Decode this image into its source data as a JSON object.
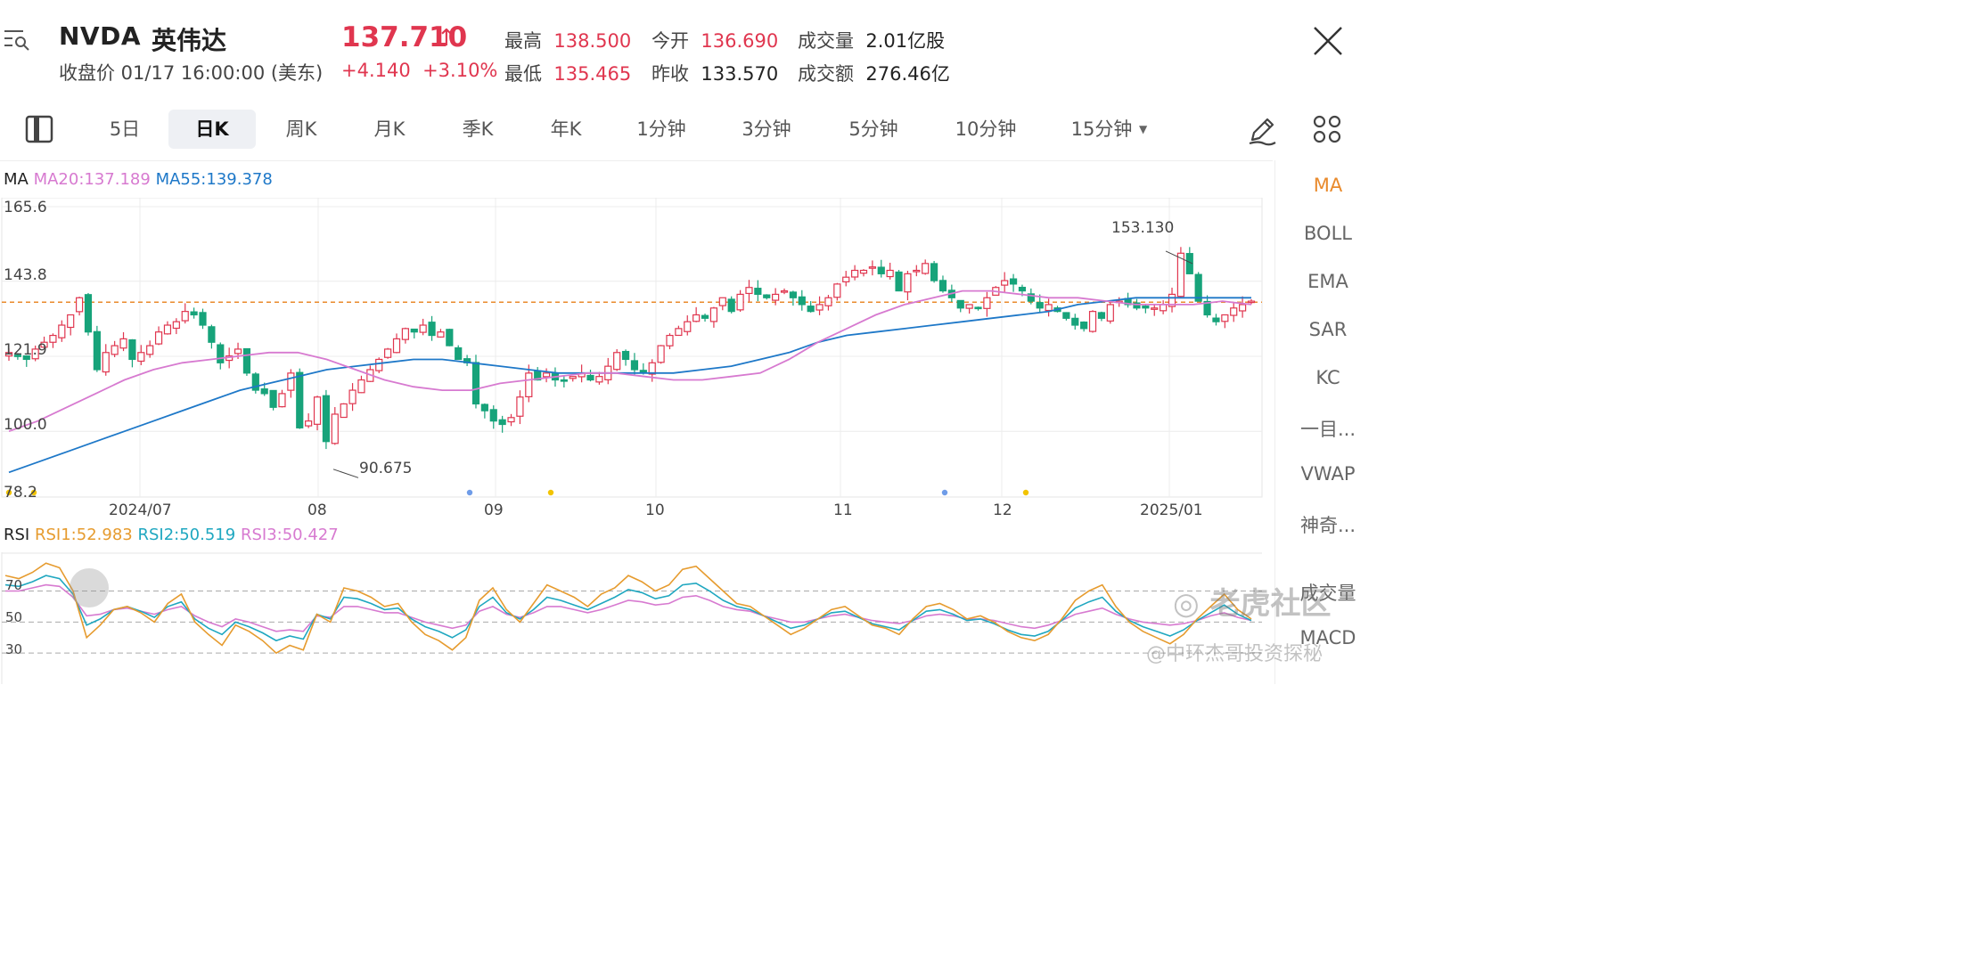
{
  "header": {
    "ticker": "NVDA",
    "name": "英伟达",
    "close_info": "收盘价 01/17 16:00:00 (美东)",
    "price": "137.710",
    "price_arrow": "↑",
    "change": "+4.140",
    "change_pct": "+3.10%",
    "stats": [
      {
        "label": "最高",
        "value": "138.500",
        "color": "red"
      },
      {
        "label": "今开",
        "value": "136.690",
        "color": "red"
      },
      {
        "label": "成交量",
        "value": "2.01亿股",
        "color": "dark"
      },
      {
        "label": "最低",
        "value": "135.465",
        "color": "red"
      },
      {
        "label": "昨收",
        "value": "133.570",
        "color": "dark"
      },
      {
        "label": "成交额",
        "value": "276.46亿",
        "color": "dark"
      }
    ]
  },
  "tabs": [
    "5日",
    "日K",
    "周K",
    "月K",
    "季K",
    "年K",
    "1分钟",
    "3分钟",
    "5分钟",
    "10分钟",
    "15分钟"
  ],
  "active_tab": "日K",
  "indicators": [
    "MA",
    "BOLL",
    "EMA",
    "SAR",
    "KC",
    "一目...",
    "VWAP",
    "神奇...",
    "成交量",
    "MACD"
  ],
  "active_indicator": "MA",
  "colors": {
    "up": "#e0364f",
    "down": "#17a37a",
    "ma20": "#d77ad0",
    "ma55": "#1e78c8",
    "rsi1": "#e69b2e",
    "rsi2": "#1fa7c0",
    "rsi3": "#d77ad0",
    "ref_line": "#e98a2c"
  },
  "ma_legend": {
    "title": "MA",
    "ma20": "MA20:137.189",
    "ma55": "MA55:139.378"
  },
  "rsi_legend": {
    "title": "RSI",
    "rsi1": "RSI1:52.983",
    "rsi2": "RSI2:50.519",
    "rsi3": "RSI3:50.427"
  },
  "watermark": {
    "brand": "老虎社区",
    "author": "@中环杰哥投资探秘"
  },
  "chart_data": [
    {
      "type": "candlestick",
      "title": "NVDA 日K",
      "y_ticks": [
        "165.6",
        "143.8",
        "121.9",
        "100.0",
        "78.2"
      ],
      "ylim": [
        78.2,
        165.6
      ],
      "x_labels": [
        "2024/07",
        "08",
        "09",
        "10",
        "11",
        "12",
        "2025/01"
      ],
      "reference_price": 137.71,
      "annotations": [
        {
          "label": "153.130",
          "value": 153.13
        },
        {
          "label": "90.675",
          "value": 90.675
        }
      ],
      "closes": [
        123,
        122,
        121,
        124,
        126,
        128,
        131,
        134,
        139,
        129,
        118,
        123,
        125,
        127,
        121,
        123,
        125,
        129,
        131,
        132,
        135,
        134,
        131,
        126,
        120,
        122,
        124,
        117,
        112,
        111,
        107,
        111,
        117,
        101,
        103,
        110,
        97,
        105,
        108,
        112,
        115,
        118,
        121,
        124,
        127,
        130,
        129,
        131,
        128,
        129,
        125,
        121,
        120,
        108,
        106,
        103,
        102,
        104,
        110,
        117,
        115,
        117,
        115,
        115,
        116,
        117,
        115,
        116,
        119,
        123,
        121,
        118,
        117,
        120,
        125,
        128,
        130,
        132,
        134,
        133,
        136,
        139,
        135,
        140,
        142,
        140,
        139,
        140,
        141,
        139,
        137,
        135,
        137,
        139,
        143,
        145,
        147,
        147,
        148,
        146,
        147,
        141,
        146,
        147,
        149,
        144,
        141,
        139,
        136,
        137,
        136,
        139,
        142,
        144,
        143,
        141,
        138,
        136,
        137,
        135,
        133,
        131,
        130,
        135,
        133,
        137,
        138,
        137,
        136,
        136,
        136,
        137,
        140,
        152,
        146,
        138,
        134,
        132,
        134,
        136,
        137,
        138
      ],
      "ma20_trend": [
        100,
        103,
        107,
        111,
        115,
        118,
        120,
        121,
        122,
        123,
        123,
        121,
        118,
        115,
        113,
        112,
        112,
        114,
        115,
        116,
        117,
        117,
        116,
        115,
        115,
        116,
        117,
        121,
        126,
        130,
        134,
        137,
        139,
        141,
        141,
        140,
        139,
        139,
        138,
        137,
        137,
        137,
        138,
        137
      ],
      "ma55_trend": [
        88,
        91,
        94,
        97,
        100,
        103,
        106,
        109,
        112,
        114,
        116,
        118,
        119,
        120,
        121,
        121,
        120,
        119,
        118,
        117,
        117,
        117,
        117,
        117,
        118,
        119,
        121,
        123,
        126,
        128,
        129,
        130,
        131,
        132,
        133,
        134,
        135,
        137,
        138,
        139,
        139,
        139,
        139,
        139
      ]
    },
    {
      "type": "line",
      "title": "RSI",
      "y_ticks": [
        "70",
        "50",
        "30"
      ],
      "ylim": [
        10,
        95
      ],
      "series": [
        {
          "name": "RSI1",
          "values": [
            80,
            78,
            82,
            88,
            85,
            70,
            40,
            48,
            58,
            60,
            56,
            50,
            62,
            68,
            50,
            42,
            35,
            48,
            44,
            38,
            30,
            35,
            32,
            55,
            50,
            72,
            70,
            66,
            60,
            62,
            50,
            42,
            38,
            32,
            40,
            64,
            72,
            58,
            50,
            62,
            74,
            70,
            66,
            60,
            68,
            72,
            80,
            76,
            70,
            74,
            84,
            86,
            78,
            70,
            62,
            60,
            54,
            48,
            42,
            46,
            52,
            58,
            60,
            54,
            48,
            46,
            42,
            52,
            60,
            62,
            58,
            52,
            54,
            50,
            44,
            40,
            38,
            42,
            52,
            64,
            70,
            74,
            60,
            50,
            44,
            40,
            36,
            42,
            52,
            60,
            68,
            58,
            52
          ]
        },
        {
          "name": "RSI2",
          "values": [
            74,
            73,
            76,
            80,
            78,
            68,
            48,
            52,
            58,
            60,
            57,
            53,
            60,
            63,
            52,
            46,
            42,
            50,
            47,
            43,
            38,
            41,
            39,
            55,
            52,
            66,
            65,
            62,
            58,
            59,
            52,
            47,
            44,
            40,
            45,
            60,
            66,
            56,
            52,
            58,
            66,
            64,
            61,
            58,
            62,
            66,
            71,
            69,
            65,
            67,
            74,
            75,
            70,
            64,
            60,
            58,
            54,
            50,
            46,
            48,
            52,
            56,
            57,
            53,
            49,
            47,
            45,
            51,
            57,
            58,
            55,
            51,
            52,
            49,
            45,
            42,
            41,
            44,
            51,
            59,
            63,
            66,
            57,
            51,
            47,
            44,
            41,
            45,
            51,
            56,
            61,
            55,
            51
          ]
        },
        {
          "name": "RSI3",
          "values": [
            70,
            70,
            72,
            74,
            73,
            66,
            54,
            55,
            58,
            59,
            57,
            55,
            58,
            60,
            54,
            50,
            47,
            52,
            50,
            47,
            44,
            45,
            44,
            54,
            53,
            60,
            60,
            58,
            56,
            56,
            53,
            50,
            48,
            46,
            48,
            57,
            60,
            55,
            53,
            56,
            60,
            60,
            58,
            56,
            58,
            61,
            64,
            63,
            61,
            62,
            66,
            67,
            64,
            60,
            58,
            57,
            54,
            52,
            50,
            50,
            52,
            54,
            55,
            53,
            51,
            50,
            49,
            51,
            54,
            55,
            54,
            52,
            52,
            51,
            49,
            47,
            46,
            48,
            51,
            55,
            57,
            59,
            55,
            52,
            50,
            49,
            48,
            49,
            51,
            54,
            56,
            53,
            51
          ]
        }
      ]
    }
  ]
}
